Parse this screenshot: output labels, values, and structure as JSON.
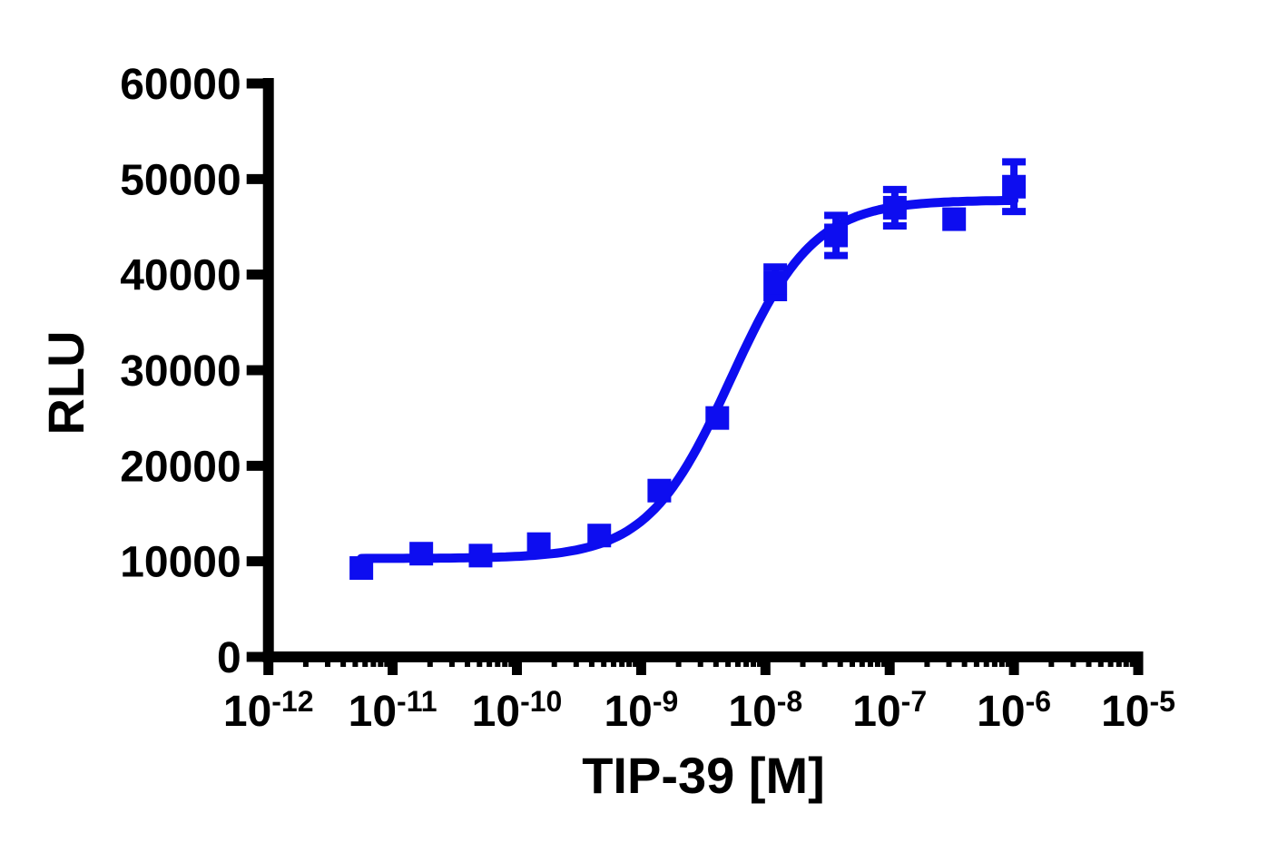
{
  "chart_data": {
    "type": "scatter",
    "title": "",
    "xlabel": "TIP-39 [M]",
    "ylabel": "RLU",
    "x_scale": "log10",
    "xlim_log10": [
      -12,
      -5
    ],
    "x_tick_labels": [
      "10^-12",
      "10^-11",
      "10^-10",
      "10^-9",
      "10^-8",
      "10^-7",
      "10^-6",
      "10^-5"
    ],
    "x_tick_exponents": [
      -12,
      -11,
      -10,
      -9,
      -8,
      -7,
      -6,
      -5
    ],
    "x_minor_ticks": "log decades 2-9",
    "ylim": [
      0,
      60000
    ],
    "y_ticks": [
      0,
      10000,
      20000,
      30000,
      40000,
      50000,
      60000
    ],
    "grid": false,
    "legend": "none",
    "background_color": "#ffffff",
    "axis_color": "#000000",
    "series": [
      {
        "name": "TIP-39",
        "marker": "square",
        "marker_size_px": 26,
        "color": "#0d0df0",
        "points": [
          {
            "conc_M": 5.6e-12,
            "rlu": 9300,
            "err": 0
          },
          {
            "conc_M": 1.7e-11,
            "rlu": 10800,
            "err": 0
          },
          {
            "conc_M": 5.1e-11,
            "rlu": 10600,
            "err": 0
          },
          {
            "conc_M": 1.5e-10,
            "rlu": 11800,
            "err": 0
          },
          {
            "conc_M": 4.6e-10,
            "rlu": 12700,
            "err": 0
          },
          {
            "conc_M": 1.4e-09,
            "rlu": 17400,
            "err": 0
          },
          {
            "conc_M": 4.1e-09,
            "rlu": 25000,
            "err": 0
          },
          {
            "conc_M": 1.2e-08,
            "rlu": 39200,
            "err": 1600
          },
          {
            "conc_M": 3.7e-08,
            "rlu": 44100,
            "err": 2100
          },
          {
            "conc_M": 1.1e-07,
            "rlu": 47000,
            "err": 1900
          },
          {
            "conc_M": 3.3e-07,
            "rlu": 45800,
            "err": 0
          },
          {
            "conc_M": 1e-06,
            "rlu": 49200,
            "err": 2600
          }
        ],
        "fit": {
          "model": "4PL sigmoidal dose-response",
          "bottom": 10300,
          "top": 47800,
          "logEC50": -8.28,
          "hill": 1.3
        }
      }
    ]
  }
}
